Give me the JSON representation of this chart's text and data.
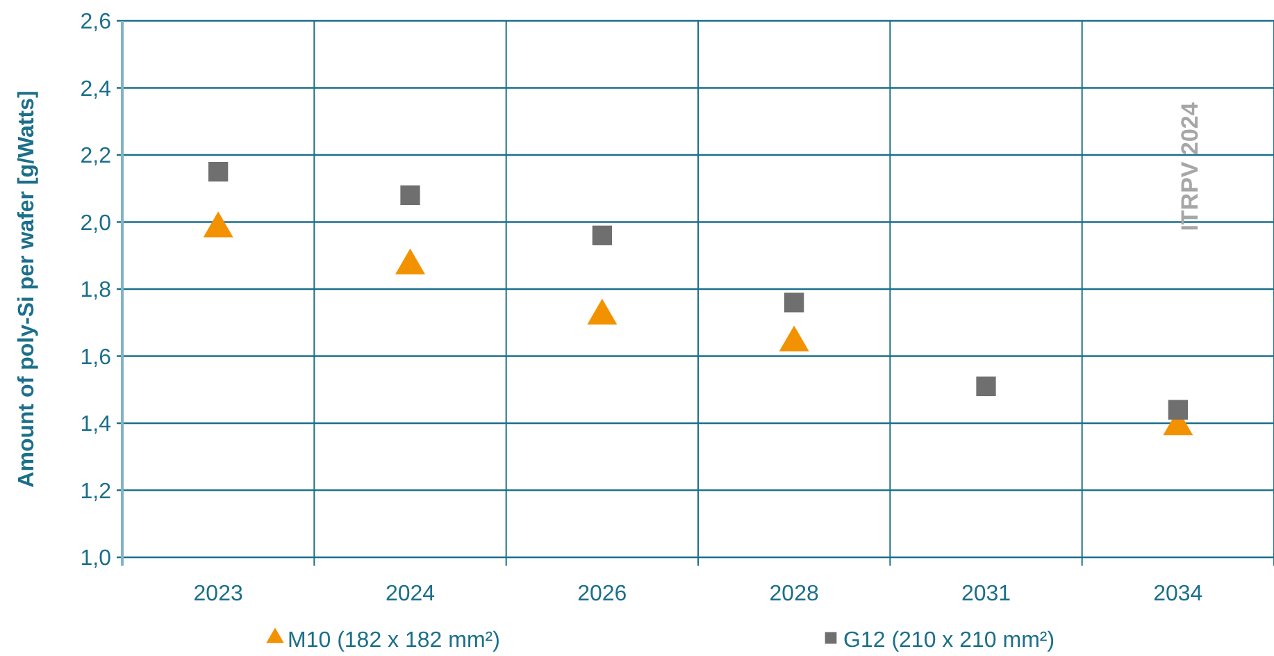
{
  "chart_data": {
    "type": "scatter",
    "ylabel": "Amount of poly-Si per wafer [g/Watts]",
    "categories": [
      "2023",
      "2024",
      "2026",
      "2028",
      "2031",
      "2034"
    ],
    "series": [
      {
        "name": "M10 (182 x 182 mm²)",
        "color": "#f39200",
        "marker": "triangle",
        "values": [
          1.98,
          1.87,
          1.72,
          1.64,
          null,
          1.39
        ]
      },
      {
        "name": "G12 (210 x 210 mm²)",
        "color": "#6f6f6f",
        "marker": "square",
        "values": [
          2.15,
          2.08,
          1.96,
          1.76,
          1.51,
          1.44
        ]
      }
    ],
    "ylim": [
      1.0,
      2.6
    ],
    "yticks": [
      {
        "value": 1.0,
        "label": "1,0"
      },
      {
        "value": 1.2,
        "label": "1,2"
      },
      {
        "value": 1.4,
        "label": "1,4"
      },
      {
        "value": 1.6,
        "label": "1,6"
      },
      {
        "value": 1.8,
        "label": "1,8"
      },
      {
        "value": 2.0,
        "label": "2,0"
      },
      {
        "value": 2.2,
        "label": "2,2"
      },
      {
        "value": 2.4,
        "label": "2,4"
      },
      {
        "value": 2.6,
        "label": "2,6"
      }
    ],
    "grid": true,
    "legend": "bottom",
    "annotations": [
      "ITRPV 2024"
    ]
  }
}
